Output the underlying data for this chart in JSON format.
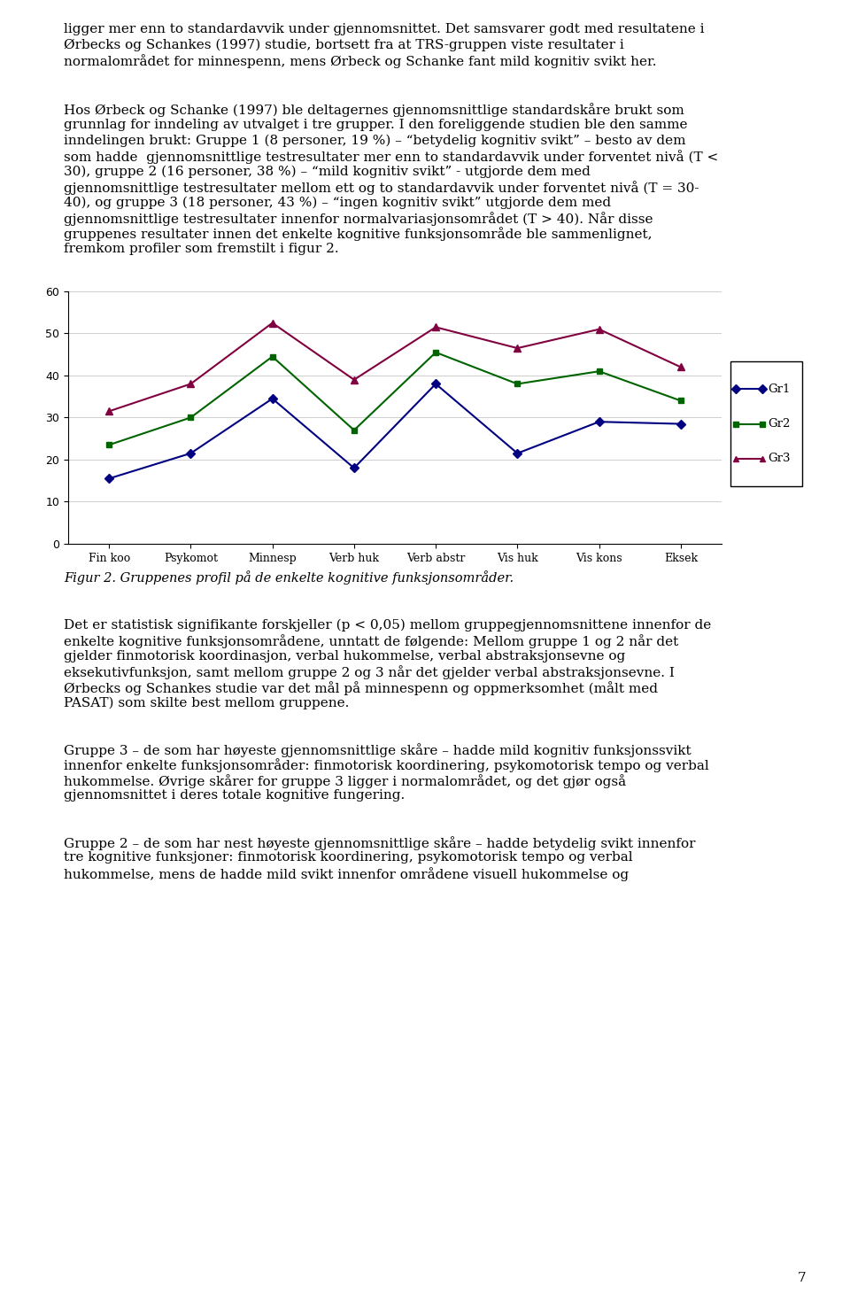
{
  "top_text_lines": [
    "ligger mer enn to standardavvik under gjennomsnittet. Det samsvarer godt med resultatene i",
    "Ørbecks og Schankes (1997) studie, bortsett fra at TRS-gruppen viste resultater i",
    "normalområdet for minnespenn, mens Ørbeck og Schanke fant mild kognitiv svikt her."
  ],
  "para1_lines": [
    "Hos Ørbeck og Schanke (1997) ble deltagernes gjennomsnittlige standardskåre brukt som",
    "grunnlag for inndeling av utvalget i tre grupper. I den foreliggende studien ble den samme",
    "inndelingen brukt: Gruppe 1 (8 personer, 19 %) – “betydelig kognitiv svikt” – besto av dem",
    "som hadde  gjennomsnittlige testresultater mer enn to standardavvik under forventet nivå (T <",
    "30), gruppe 2 (16 personer, 38 %) – “mild kognitiv svikt” - utgjorde dem med",
    "gjennomsnittlige testresultater mellom ett og to standardavvik under forventet nivå (T = 30-",
    "40), og gruppe 3 (18 personer, 43 %) – “ingen kognitiv svikt” utgjorde dem med",
    "gjennomsnittlige testresultater innenfor normalvariasjonsområdet (T > 40). Når disse",
    "gruppenes resultater innen det enkelte kognitive funksjonsområde ble sammenlignet,",
    "fremkom profiler som fremstilt i figur 2."
  ],
  "categories": [
    "Fin koo",
    "Psykomot",
    "Minnesp",
    "Verb huk",
    "Verb abstr",
    "Vis huk",
    "Vis kons",
    "Eksek"
  ],
  "gr1": [
    15.5,
    21.5,
    34.5,
    18.0,
    38.0,
    21.5,
    29.0,
    28.5
  ],
  "gr2": [
    23.5,
    30.0,
    44.5,
    27.0,
    45.5,
    38.0,
    41.0,
    34.0
  ],
  "gr3": [
    31.5,
    38.0,
    52.5,
    39.0,
    51.5,
    46.5,
    51.0,
    42.0
  ],
  "gr1_color": "#000080",
  "gr2_color": "#006400",
  "gr3_color": "#800040",
  "ylim": [
    0,
    60
  ],
  "yticks": [
    0,
    10,
    20,
    30,
    40,
    50,
    60
  ],
  "fig_caption": "Figur 2. Gruppenes profil på de enkelte kognitive funksjonsområder.",
  "para2_lines": [
    "Det er statistisk signifikante forskjeller (p < 0,05) mellom gruppegjennomsnittene innenfor de",
    "enkelte kognitive funksjonsområdene, unntatt de følgende: Mellom gruppe 1 og 2 når det",
    "gjelder finmotorisk koordinasjon, verbal hukommelse, verbal abstraksjonsevne og",
    "eksekutivfunksjon, samt mellom gruppe 2 og 3 når det gjelder verbal abstraksjonsevne. I",
    "Ørbecks og Schankes studie var det mål på minnespenn og oppmerksomhet (målt med",
    "PASAT) som skilte best mellom gruppene."
  ],
  "para3_lines": [
    "Gruppe 3 – de som har høyeste gjennomsnittlige skåre – hadde mild kognitiv funksjonssvikt",
    "innenfor enkelte funksjonsområder: finmotorisk koordinering, psykomotorisk tempo og verbal",
    "hukommelse. Øvrige skårer for gruppe 3 ligger i normalområdet, og det gjør også",
    "gjennomsnittet i deres totale kognitive fungering."
  ],
  "para4_lines": [
    "Gruppe 2 – de som har nest høyeste gjennomsnittlige skåre – hadde betydelig svikt innenfor",
    "tre kognitive funksjoner: finmotorisk koordinering, psykomotorisk tempo og verbal",
    "hukommelse, mens de hadde mild svikt innenfor områdene visuell hukommelse og"
  ],
  "page_number": "7",
  "background_color": "#ffffff",
  "text_color": "#000000",
  "font_size_body": 11.0,
  "font_size_caption": 10.5
}
